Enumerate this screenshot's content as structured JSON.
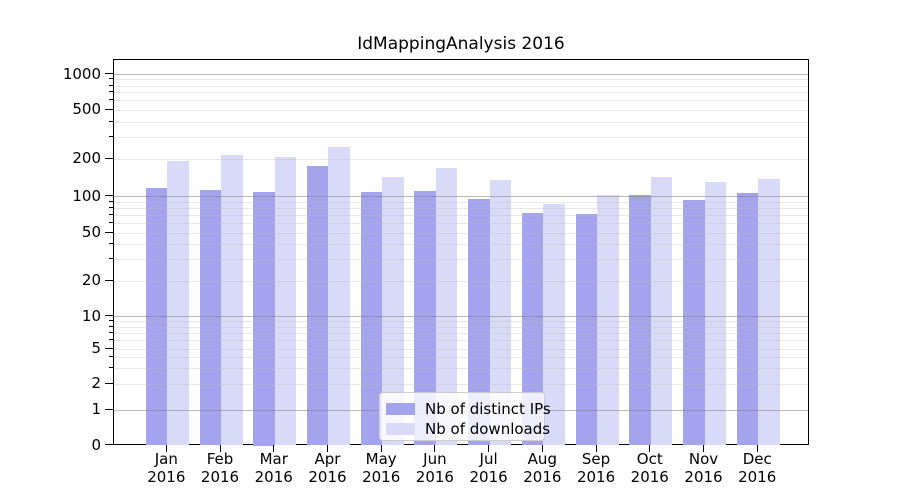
{
  "chart_data": {
    "type": "bar",
    "title": "IdMappingAnalysis 2016",
    "categories": [
      "Jan 2016",
      "Feb 2016",
      "Mar 2016",
      "Apr 2016",
      "May 2016",
      "Jun 2016",
      "Jul 2016",
      "Aug 2016",
      "Sep 2016",
      "Oct 2016",
      "Nov 2016",
      "Dec 2016"
    ],
    "categories_month": [
      "Jan",
      "Feb",
      "Mar",
      "Apr",
      "May",
      "Jun",
      "Jul",
      "Aug",
      "Sep",
      "Oct",
      "Nov",
      "Dec"
    ],
    "categories_year": "2016",
    "series": [
      {
        "name": "Nb of distinct IPs",
        "color": "#a3a3ee",
        "values": [
          118,
          112,
          109,
          178,
          108,
          111,
          95,
          73,
          72,
          102,
          94,
          107
        ]
      },
      {
        "name": "Nb of downloads",
        "color": "#d9d9f8",
        "values": [
          193,
          215,
          207,
          253,
          143,
          170,
          135,
          86,
          102,
          144,
          131,
          139
        ]
      }
    ],
    "xlabel": "",
    "ylabel": "",
    "yscale": "symlog",
    "y_ticks": [
      0,
      1,
      2,
      5,
      10,
      20,
      50,
      100,
      200,
      500,
      1000
    ],
    "ylim": [
      0,
      1300
    ],
    "grid": "horizontal, major (decades) and minor (log subdivisions)",
    "legend_position": "lower center"
  },
  "legend": {
    "items": [
      {
        "label": "Nb of distinct IPs",
        "color": "#a3a3ee"
      },
      {
        "label": "Nb of downloads",
        "color": "#d9d9f8"
      }
    ]
  },
  "colors": {
    "background": "#ffffff",
    "axis": "#000000",
    "grid_major": "#828282",
    "grid_minor": "#dedede",
    "bar_distinct_ips": "#a3a3ee",
    "bar_downloads": "#d9d9f8",
    "text": "#000000"
  }
}
